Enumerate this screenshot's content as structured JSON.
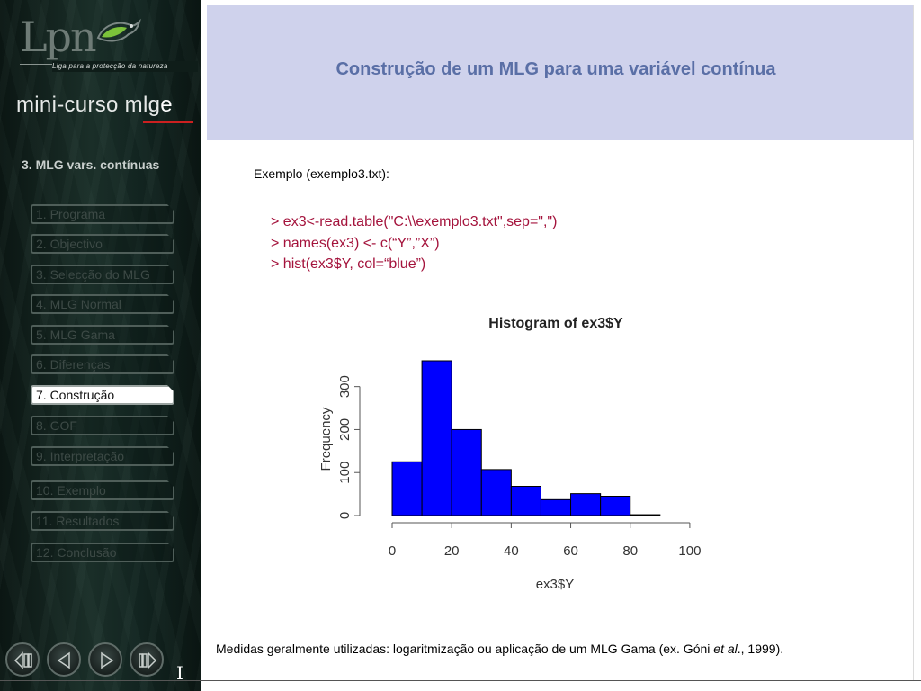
{
  "sidebar": {
    "logo_text": "Lpn",
    "logo_tagline": "Liga para a protecção da natureza",
    "course_title_prefix": "mini-curso ",
    "course_title_mid": "mlg",
    "course_title_end": "e",
    "section_heading": "3. MLG vars. contínuas",
    "items": [
      {
        "label": "1. Programa"
      },
      {
        "label": "2. Objectivo"
      },
      {
        "label": "3. Selecção do MLG"
      },
      {
        "label": "4. MLG Normal"
      },
      {
        "label": "5. MLG Gama"
      },
      {
        "label": "6. Diferenças"
      },
      {
        "label": "7. Construção"
      },
      {
        "label": "8. GOF"
      },
      {
        "label": "9. Interpretação"
      },
      {
        "label": "10. Exemplo"
      },
      {
        "label": "11. Resultados"
      },
      {
        "label": "12. Conclusão"
      }
    ],
    "active_index": 6,
    "nav_buttons": [
      "first-icon",
      "previous-icon",
      "next-icon",
      "last-icon"
    ],
    "page_indicator": "I"
  },
  "slide": {
    "title": "Construção de um MLG para uma variável contínua",
    "example_label": "Exemplo (exemplo3.txt):",
    "code_lines": [
      "> ex3<-read.table(\"C:\\\\exemplo3.txt\",sep=\",\")",
      "> names(ex3) <- c(“Y”,”X”)",
      "> hist(ex3$Y, col=“blue”)"
    ],
    "bottom_note_prefix": "Medidas geralmente utilizadas: logaritmização ou aplicação de um MLG Gama (ex. Góni ",
    "bottom_note_italic": "et al",
    "bottom_note_suffix": "., 1999)."
  },
  "colors": {
    "header_band": "#cfd2ec",
    "title": "#5a6fa6",
    "code": "#a4133c",
    "bar_fill": "#0000ff",
    "nav_accent": "#cc2020"
  },
  "chart_data": {
    "type": "bar",
    "title": "Histogram of ex3$Y",
    "xlabel": "ex3$Y",
    "ylabel": "Frequency",
    "bin_edges": [
      0,
      10,
      20,
      30,
      40,
      50,
      60,
      70,
      80,
      90
    ],
    "values": [
      125,
      360,
      200,
      107,
      68,
      37,
      51,
      45,
      2
    ],
    "xticks": [
      0,
      20,
      40,
      60,
      80,
      100
    ],
    "yticks": [
      0,
      100,
      200,
      300
    ],
    "xlim": [
      0,
      110
    ],
    "ylim": [
      0,
      360
    ],
    "bar_color": "blue"
  }
}
